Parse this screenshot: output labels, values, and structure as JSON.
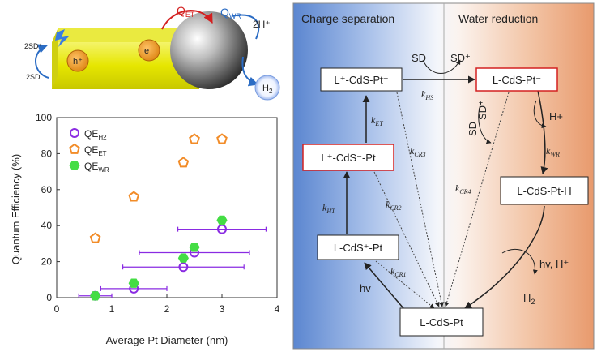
{
  "schematic": {
    "q_et": "Q",
    "q_et_sub": "ET",
    "q_wr": "Q",
    "q_wr_sub": "WR",
    "h_plus": "2H⁺",
    "h2": "H",
    "h2_sub": "2",
    "sd_plus": "2SD⁺",
    "sd": "2SD",
    "hole": "h⁺",
    "electron": "e⁻"
  },
  "chart_data": {
    "type": "scatter",
    "xlabel": "Average Pt Diameter (nm)",
    "ylabel": "Quantum Efficiency (%)",
    "xlim": [
      0,
      4
    ],
    "ylim": [
      0,
      100
    ],
    "xticks": [
      "0",
      "1",
      "2",
      "3",
      "4"
    ],
    "yticks": [
      "0",
      "20",
      "40",
      "60",
      "80",
      "100"
    ],
    "legend_position": "top-left",
    "series": [
      {
        "name": "QE",
        "sub": "H2",
        "marker": "circle",
        "color": "#8a2be2",
        "points": [
          {
            "x": 0.7,
            "y": 1,
            "xerr": 0.3
          },
          {
            "x": 1.4,
            "y": 5,
            "xerr": 0.6
          },
          {
            "x": 2.3,
            "y": 17,
            "xerr": 1.1
          },
          {
            "x": 2.5,
            "y": 25,
            "xerr": 1.0
          },
          {
            "x": 3.0,
            "y": 38,
            "xerr": 0.8
          }
        ]
      },
      {
        "name": "QE",
        "sub": "ET",
        "marker": "pentagon",
        "color": "#f28c28",
        "points": [
          {
            "x": 0.7,
            "y": 33
          },
          {
            "x": 1.4,
            "y": 56
          },
          {
            "x": 2.3,
            "y": 75
          },
          {
            "x": 2.5,
            "y": 88
          },
          {
            "x": 3.0,
            "y": 88
          }
        ]
      },
      {
        "name": "QE",
        "sub": "WR",
        "marker": "hexagon",
        "color": "#44dd44",
        "points": [
          {
            "x": 0.7,
            "y": 1
          },
          {
            "x": 1.4,
            "y": 8
          },
          {
            "x": 2.3,
            "y": 22
          },
          {
            "x": 2.5,
            "y": 28
          },
          {
            "x": 3.0,
            "y": 43
          }
        ]
      }
    ]
  },
  "mechanism": {
    "header_left": "Charge separation",
    "header_right": "Water reduction",
    "nodes": {
      "n1": "L⁺-CdS-Pt⁻",
      "n2": "L-CdS-Pt⁻",
      "n3": "L⁺-CdS⁻-Pt",
      "n4": "L-CdS⁺-Pt",
      "n5": "L-CdS-Pt-H",
      "n6": "L-CdS-Pt"
    },
    "labels": {
      "sd": "SD",
      "sd_plus": "SD⁺",
      "sd2": "SD",
      "sd2_plus": "SD⁺",
      "khs": "k",
      "khs_sub": "HS",
      "ket": "k",
      "ket_sub": "ET",
      "kcr3": "k",
      "kcr3_sub": "CR3",
      "kcr4": "k",
      "kcr4_sub": "CR4",
      "kwr": "k",
      "kwr_sub": "WR",
      "kht": "k",
      "kht_sub": "HT",
      "kcr2": "k",
      "kcr2_sub": "CR2",
      "kcr1": "k",
      "kcr1_sub": "CR1",
      "hv": "hv",
      "hv_h": "hv, H⁺",
      "h_plus": "H+",
      "h2": "H",
      "h2_sub": "2"
    }
  }
}
